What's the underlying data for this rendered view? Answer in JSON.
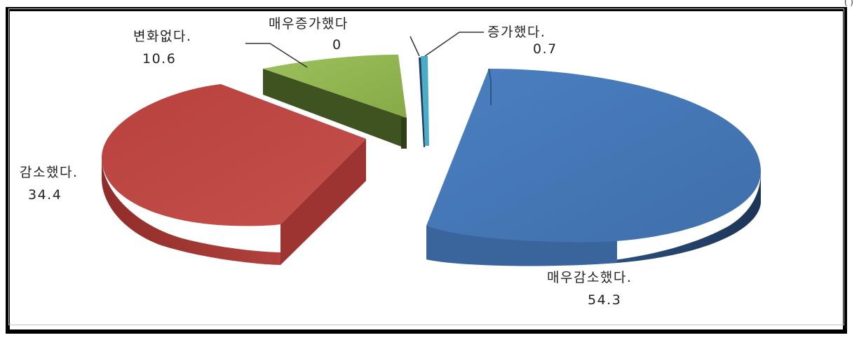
{
  "chart_data": {
    "type": "pie",
    "title": "",
    "slices": [
      {
        "label": "매우감소했다.",
        "value": 54.3,
        "color": "#4f81bd"
      },
      {
        "label": "감소했다.",
        "value": 34.4,
        "color": "#c0504d"
      },
      {
        "label": "변화없다.",
        "value": 10.6,
        "color": "#9bbb59"
      },
      {
        "label": "매우증가했다",
        "value": 0,
        "color": "#1f3864"
      },
      {
        "label": "증가했다.",
        "value": 0.7,
        "color": "#4bacc6"
      }
    ],
    "value_labels": [
      "54.3",
      "34.4",
      "10.6",
      "0",
      "0.7"
    ],
    "style": "3d-exploded"
  },
  "corner_text": "(         )"
}
